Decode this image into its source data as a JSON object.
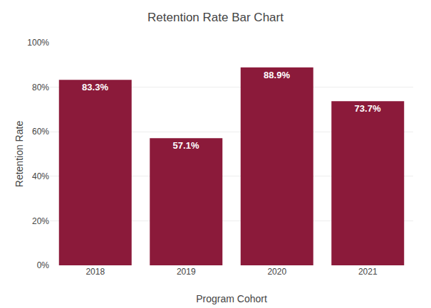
{
  "chart_data": {
    "type": "bar",
    "title": "Retention Rate Bar Chart",
    "xlabel": "Program Cohort",
    "ylabel": "Retention Rate",
    "categories": [
      "2018",
      "2019",
      "2020",
      "2021"
    ],
    "values": [
      83.3,
      57.1,
      88.9,
      73.7
    ],
    "value_labels": [
      "83.3%",
      "57.1%",
      "88.9%",
      "73.7%"
    ],
    "data_labels": true,
    "color": "#8B1A3A",
    "ylim": [
      0,
      100
    ],
    "yticks": [
      {
        "value": 0,
        "label": "0%"
      },
      {
        "value": 20,
        "label": "20%"
      },
      {
        "value": 40,
        "label": "40%"
      },
      {
        "value": 60,
        "label": "60%"
      },
      {
        "value": 80,
        "label": "80%"
      },
      {
        "value": 100,
        "label": "100%"
      }
    ],
    "grid": true
  }
}
